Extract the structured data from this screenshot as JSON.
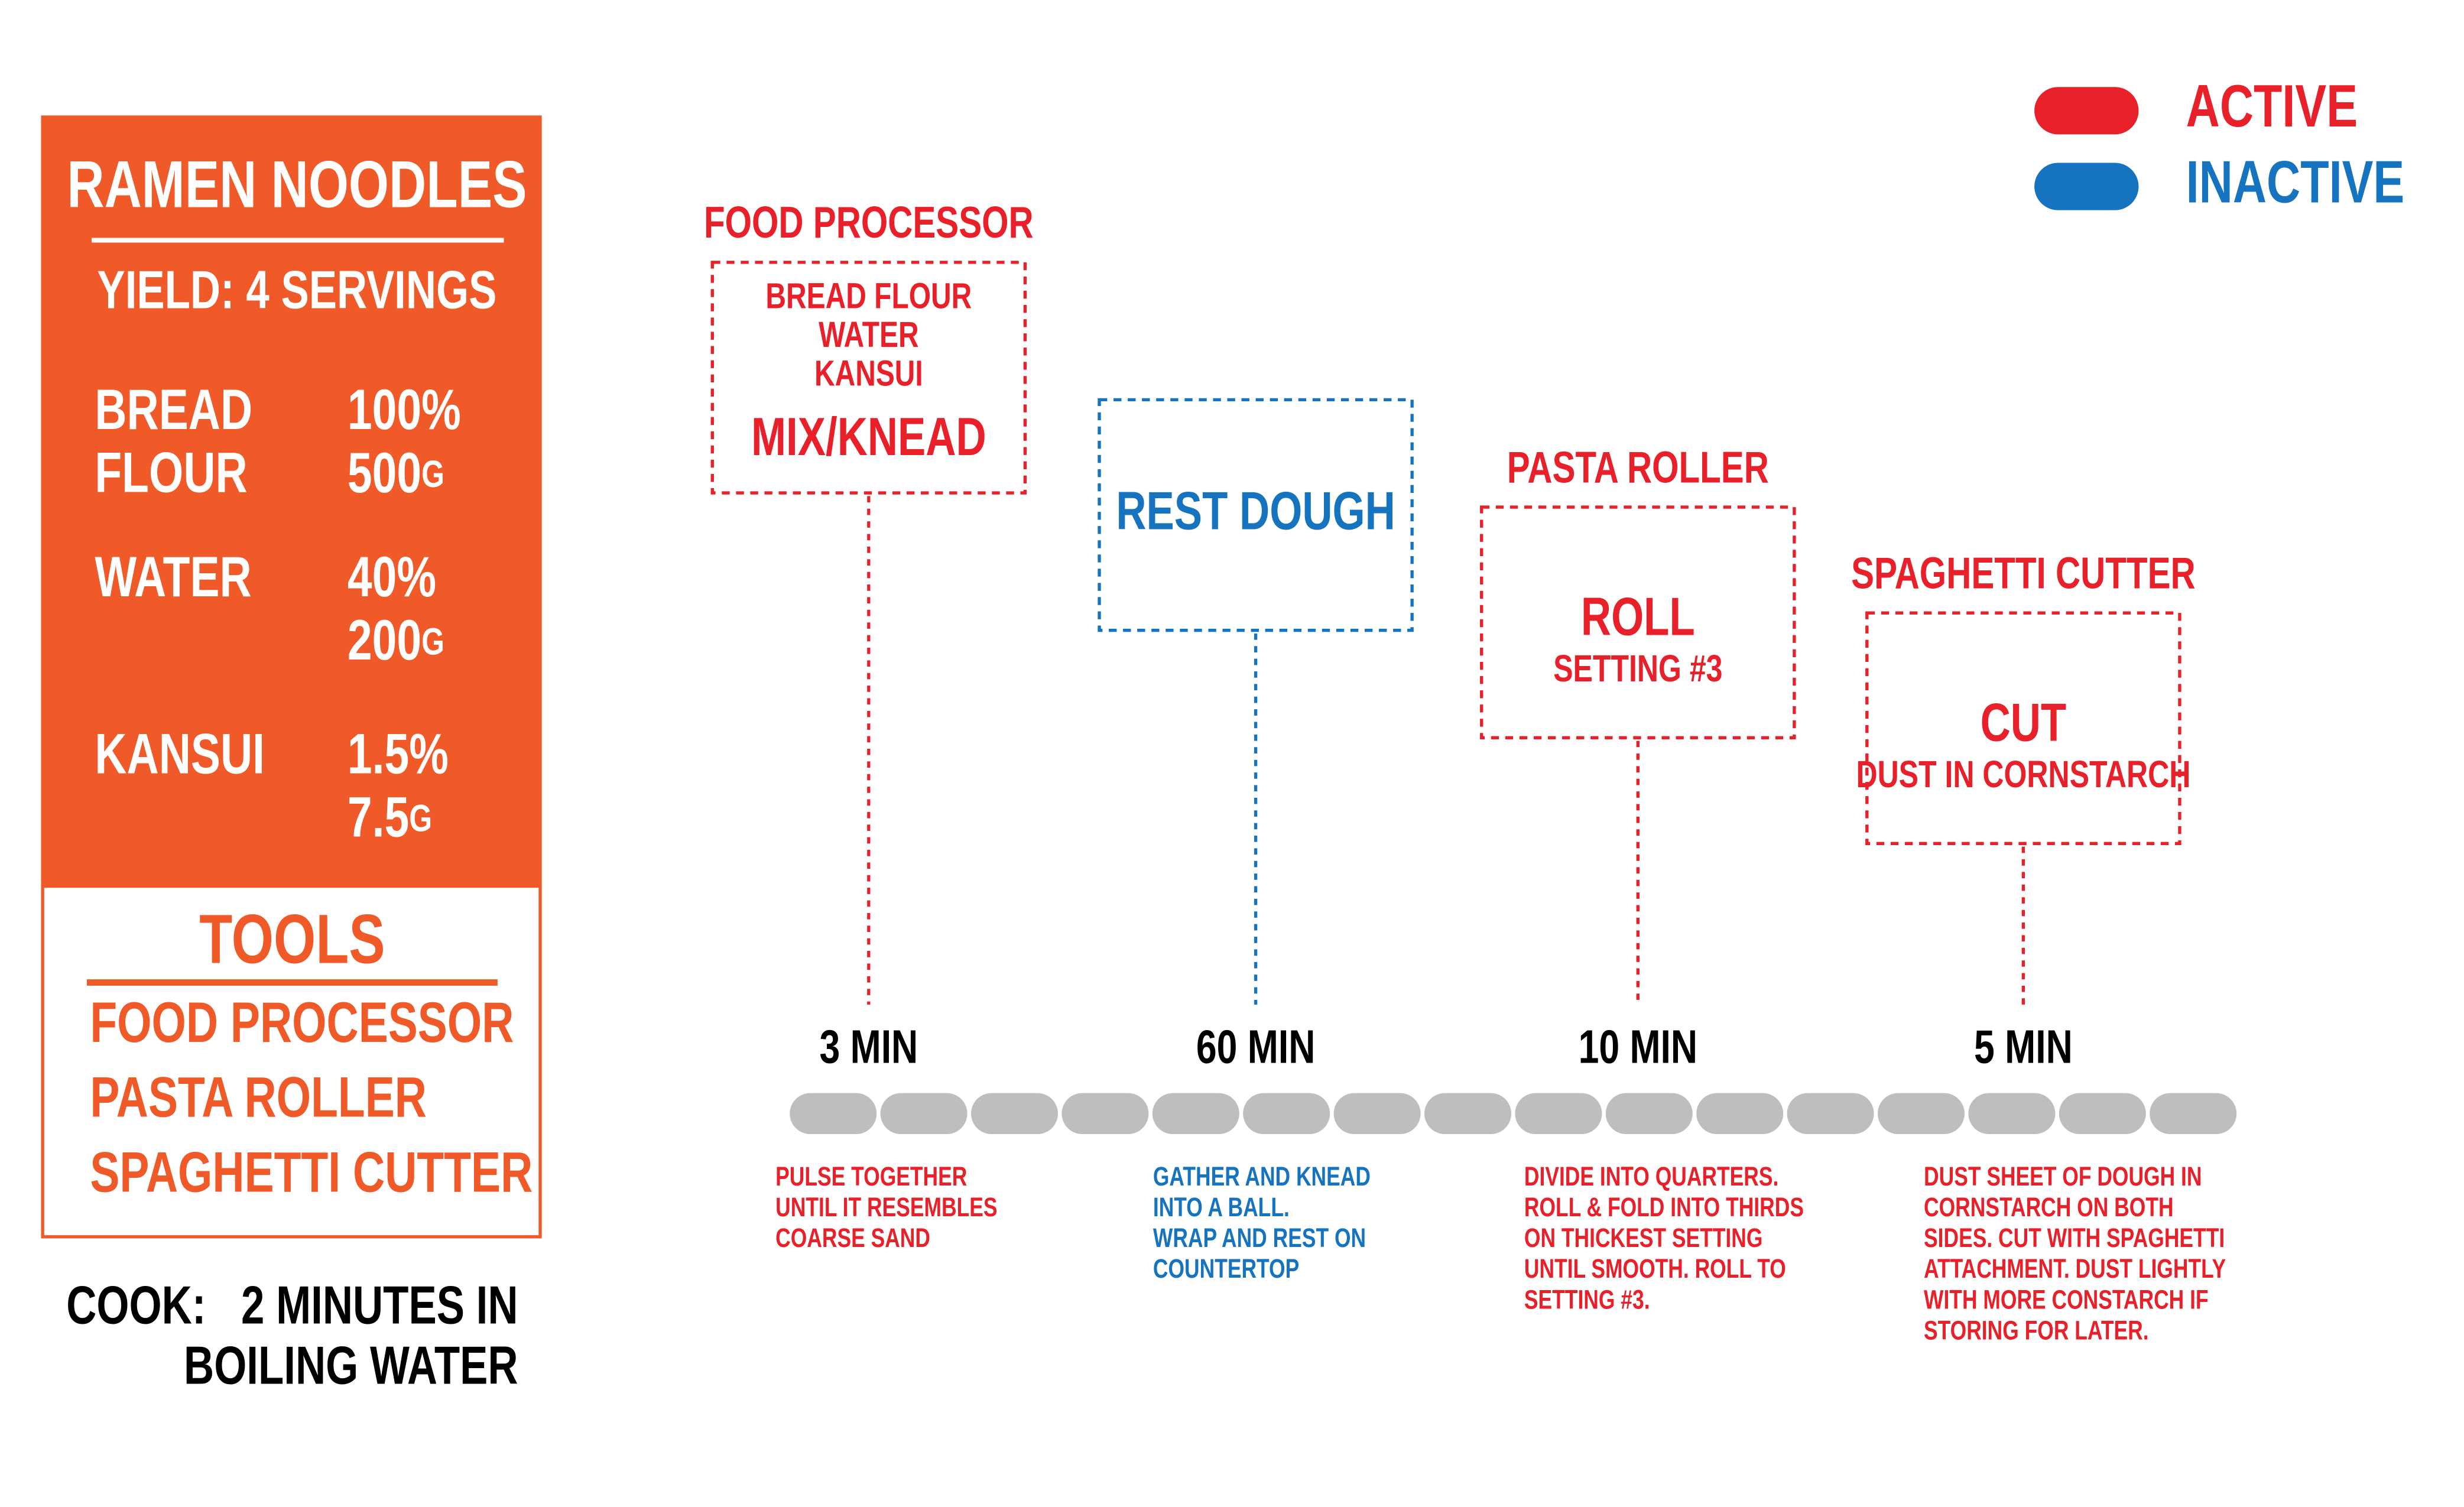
{
  "card": {
    "title": "RAMEN NOODLES",
    "yield": "YIELD: 4 SERVINGS",
    "ingredients": [
      {
        "name": [
          "BREAD",
          "FLOUR"
        ],
        "percent": "100%",
        "amount": "500",
        "unit": "G"
      },
      {
        "name": [
          "WATER"
        ],
        "percent": "40%",
        "amount": "200",
        "unit": "G"
      },
      {
        "name": [
          "KANSUI"
        ],
        "percent": "1.5%",
        "amount": "7.5",
        "unit": "G"
      }
    ],
    "tools": {
      "title": "TOOLS",
      "items": [
        "FOOD PROCESSOR",
        "PASTA ROLLER",
        "SPAGHETTI CUTTER"
      ]
    },
    "cook": {
      "label": "COOK:",
      "lines": [
        "2 MINUTES IN",
        "BOILING WATER"
      ]
    }
  },
  "legend": {
    "active": {
      "label": "ACTIVE",
      "color": "#e8202a"
    },
    "inactive": {
      "label": "INACTIVE",
      "color": "#1673bf"
    }
  },
  "steps": [
    {
      "active": true,
      "tool": "FOOD PROCESSOR",
      "lines": [
        "BREAD FLOUR",
        "WATER",
        "KANSUI"
      ],
      "action": "MIX/KNEAD",
      "time": "3 MIN",
      "description": [
        "PULSE TOGETHER",
        "UNTIL IT RESEMBLES",
        "COARSE SAND"
      ]
    },
    {
      "active": false,
      "action": "REST DOUGH",
      "time": "60 MIN",
      "description": [
        "GATHER AND KNEAD",
        "INTO A BALL.",
        "WRAP AND REST ON",
        "COUNTERTOP"
      ]
    },
    {
      "active": true,
      "tool": "PASTA ROLLER",
      "action": "ROLL",
      "detail": "SETTING #3",
      "time": "10 MIN",
      "description": [
        "DIVIDE INTO QUARTERS.",
        "ROLL & FOLD INTO THIRDS",
        "ON THICKEST SETTING",
        "UNTIL SMOOTH. ROLL TO",
        "SETTING #3."
      ]
    },
    {
      "active": true,
      "tool": "SPAGHETTI CUTTER",
      "action": "CUT",
      "detail": "DUST IN CORNSTARCH",
      "time": "5 MIN",
      "description": [
        "DUST SHEET OF DOUGH IN",
        "CORNSTARCH ON BOTH",
        "SIDES. CUT WITH SPAGHETTI",
        "ATTACHMENT. DUST LIGHTLY",
        "WITH MORE CONSTARCH IF",
        "STORING FOR LATER."
      ]
    }
  ]
}
